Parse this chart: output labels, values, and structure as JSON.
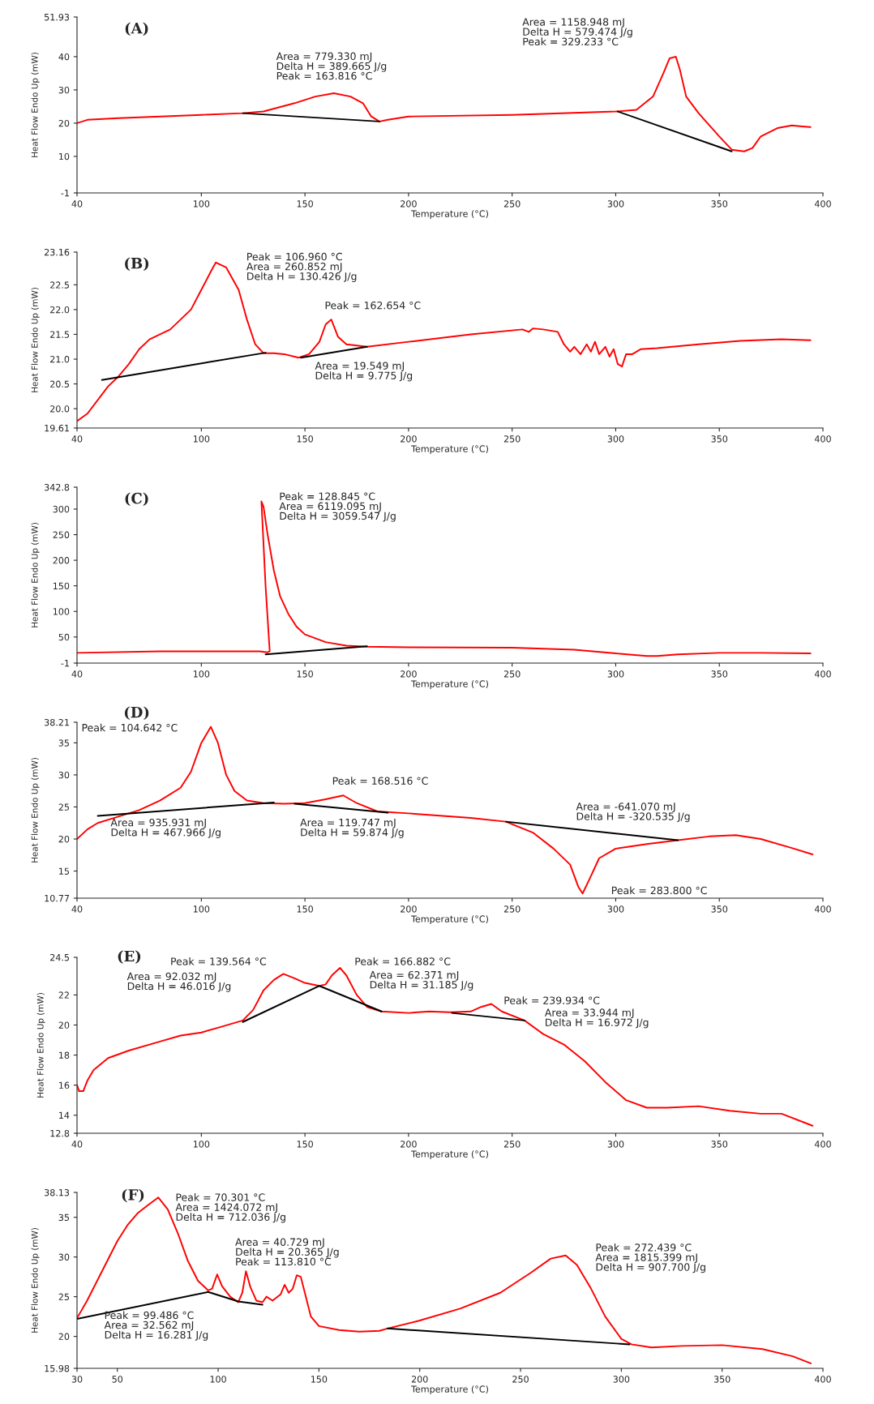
{
  "chart_data": [
    {
      "type": "line",
      "title": "(A)",
      "xlabel": "Temperature (°C)",
      "ylabel": "Heat Flow Endo Up (mW)",
      "xlim": [
        40,
        400
      ],
      "xticks": [
        40,
        100,
        150,
        200,
        250,
        300,
        350,
        400
      ],
      "ylim": [
        -1,
        51.93
      ],
      "yticks": [
        -1,
        10,
        20,
        30,
        40,
        51.93
      ],
      "series": [
        {
          "color": "#ff0000",
          "x": [
            40,
            45,
            60,
            100,
            120,
            130,
            145,
            155,
            164,
            172,
            178,
            182,
            186,
            190,
            200,
            250,
            300,
            310,
            318,
            323,
            326,
            329,
            331,
            334,
            340,
            350,
            356,
            362,
            366,
            370,
            378,
            385,
            390,
            394
          ],
          "values": [
            20,
            21,
            21.5,
            22.5,
            23,
            23.5,
            26,
            28,
            29,
            28,
            26,
            22,
            20.5,
            21,
            22,
            22.5,
            23.5,
            24,
            28,
            35,
            39.5,
            40,
            36,
            28,
            23,
            16,
            12,
            11.5,
            12.5,
            16,
            18.5,
            19.3,
            19,
            18.8
          ]
        },
        {
          "color": "#000000",
          "x": [
            120,
            186,
            250,
            301,
            356
          ],
          "values": [
            23,
            20.5,
            null,
            23.5,
            11.5
          ]
        }
      ],
      "annotations": [
        "Area = 779.330 mJ\nDelta H = 389.665 J/g\nPeak = 163.816 °C",
        "Area = 1158.948 mJ\nDelta H = 579.474 J/g\nPeak = 329.233 °C"
      ]
    },
    {
      "type": "line",
      "title": "(B)",
      "xlabel": "Temperature (°C)",
      "ylabel": "Heat Flow Endo Up (mW)",
      "xlim": [
        40,
        400
      ],
      "xticks": [
        40,
        100,
        150,
        200,
        250,
        300,
        350,
        400
      ],
      "ylim": [
        19.61,
        23.16
      ],
      "yticks": [
        19.61,
        {
          "value": 20,
          "label": "20.0"
        },
        20.5,
        {
          "value": 21,
          "label": "21.0"
        },
        21.5,
        {
          "value": 22,
          "label": "22.0"
        },
        22.5,
        23.16
      ],
      "series": [
        {
          "color": "#ff0000",
          "x": [
            40,
            45,
            55,
            60,
            65,
            70,
            75,
            85,
            95,
            100,
            105,
            107,
            112,
            118,
            122,
            126,
            130,
            135,
            140,
            147,
            152,
            157,
            160,
            162.7,
            166,
            170,
            180,
            200,
            230,
            255,
            258,
            260,
            265,
            272,
            275,
            278,
            280,
            283,
            286,
            288,
            290,
            292,
            295,
            297,
            299,
            301,
            303,
            305,
            308,
            312,
            320,
            340,
            360,
            380,
            394
          ],
          "values": [
            19.75,
            19.9,
            20.45,
            20.65,
            20.9,
            21.2,
            21.4,
            21.6,
            22.0,
            22.4,
            22.8,
            22.95,
            22.85,
            22.4,
            21.8,
            21.3,
            21.12,
            21.12,
            21.1,
            21.03,
            21.1,
            21.35,
            21.7,
            21.8,
            21.45,
            21.3,
            21.25,
            21.35,
            21.5,
            21.6,
            21.55,
            21.62,
            21.6,
            21.55,
            21.3,
            21.15,
            21.25,
            21.1,
            21.3,
            21.15,
            21.35,
            21.1,
            21.25,
            21.05,
            21.2,
            20.9,
            20.85,
            21.1,
            21.1,
            21.2,
            21.22,
            21.3,
            21.37,
            21.4,
            21.38
          ]
        },
        {
          "color": "#000000",
          "x": [
            52,
            131,
            140,
            148,
            180
          ],
          "values": [
            20.58,
            21.13,
            null,
            21.03,
            21.25
          ]
        }
      ],
      "annotations": [
        "Peak = 106.960 °C\nArea = 260.852 mJ\nDelta H = 130.426 J/g",
        "Peak = 162.654 °C",
        "Area = 19.549 mJ\nDelta H = 9.775 J/g"
      ]
    },
    {
      "type": "line",
      "title": "(C)",
      "xlabel": "Temperature (°C)",
      "ylabel": "Heat Flow Endo Up (mW)",
      "xlim": [
        40,
        400
      ],
      "xticks": [
        40,
        100,
        150,
        200,
        250,
        300,
        350,
        400
      ],
      "ylim": [
        -1,
        342.8
      ],
      "yticks": [
        -1,
        50,
        100,
        150,
        200,
        250,
        300,
        342.8
      ],
      "series": [
        {
          "color": "#ff0000",
          "x": [
            40,
            80,
            128,
            132,
            133,
            131,
            129,
            130,
            132,
            135,
            138,
            142,
            146,
            150,
            160,
            170,
            180,
            200,
            250,
            280,
            300,
            315,
            320,
            330,
            350,
            370,
            394
          ],
          "values": [
            19,
            22,
            22,
            20,
            22,
            150,
            315,
            305,
            250,
            180,
            130,
            95,
            70,
            55,
            40,
            33,
            31,
            30,
            29,
            25,
            18,
            13,
            13,
            16,
            19,
            19,
            18
          ]
        },
        {
          "color": "#000000",
          "x": [
            131,
            180
          ],
          "values": [
            16,
            32
          ]
        }
      ],
      "annotations": [
        "Peak = 128.845 °C\nArea = 6119.095 mJ\nDelta H = 3059.547 J/g"
      ]
    },
    {
      "type": "line",
      "title": "(D)",
      "xlabel": "Temperature (°C)",
      "ylabel": "Heat Flow Endo Up (mW)",
      "xlim": [
        40,
        400
      ],
      "xticks": [
        40,
        100,
        150,
        200,
        250,
        300,
        350,
        400
      ],
      "ylim": [
        10.77,
        38.21
      ],
      "yticks": [
        10.77,
        15,
        20,
        25,
        30,
        35,
        38.21
      ],
      "series": [
        {
          "color": "#ff0000",
          "x": [
            40,
            45,
            50,
            60,
            70,
            80,
            90,
            95,
            100,
            104.6,
            108,
            112,
            116,
            122,
            130,
            140,
            150,
            160,
            168.5,
            175,
            185,
            200,
            230,
            247,
            260,
            270,
            278,
            282,
            284,
            287,
            292,
            300,
            315,
            330,
            345,
            358,
            370,
            385,
            395
          ],
          "values": [
            20,
            21.5,
            22.5,
            23.5,
            24.5,
            26,
            28,
            30.5,
            35,
            37.5,
            35,
            30,
            27.5,
            26,
            25.6,
            25.5,
            25.6,
            26.2,
            26.8,
            25.6,
            24.3,
            24,
            23.3,
            22.7,
            21,
            18.5,
            16,
            12.5,
            11.5,
            13.5,
            17,
            18.5,
            19.2,
            19.8,
            20.4,
            20.6,
            20,
            18.6,
            17.6
          ]
        },
        {
          "color": "#000000",
          "x": [
            50,
            135,
            140,
            145,
            190,
            220,
            247,
            330
          ],
          "values": [
            23.6,
            25.7,
            null,
            25.5,
            24.1,
            null,
            22.7,
            19.8
          ]
        }
      ],
      "annotations": [
        "Peak = 104.642 °C",
        "Peak = 168.516 °C",
        "Area = 935.931 mJ\nDelta H = 467.966 J/g",
        "Area = 119.747 mJ\nDelta H = 59.874 J/g",
        "Area = -641.070 mJ\nDelta H = -320.535 J/g",
        "Peak = 283.800 °C"
      ]
    },
    {
      "type": "line",
      "title": "(E)",
      "xlabel": "Temperature (°C)",
      "ylabel": "Heat Flow Endo Up (mW)",
      "xlim": [
        40,
        400
      ],
      "xticks": [
        40,
        100,
        150,
        200,
        250,
        300,
        350,
        400
      ],
      "ylim": [
        12.8,
        24.5
      ],
      "yticks": [
        12.8,
        14,
        16,
        18,
        20,
        22,
        24.5
      ],
      "series": [
        {
          "color": "#ff0000",
          "x": [
            40,
            41,
            43,
            45,
            48,
            55,
            65,
            80,
            90,
            100,
            110,
            120,
            125,
            130,
            135,
            139.6,
            145,
            150,
            157,
            160,
            163,
            166.9,
            170,
            175,
            180,
            187,
            200,
            210,
            220,
            230,
            235,
            240,
            245,
            256,
            265,
            275,
            285,
            295,
            305,
            315,
            325,
            340,
            355,
            370,
            380,
            395
          ],
          "values": [
            16,
            15.6,
            15.6,
            16.3,
            17,
            17.8,
            18.3,
            18.9,
            19.3,
            19.5,
            19.9,
            20.3,
            21,
            22.3,
            23,
            23.4,
            23.1,
            22.8,
            22.6,
            22.7,
            23.3,
            23.8,
            23.3,
            22,
            21.2,
            20.9,
            20.8,
            20.9,
            20.85,
            20.9,
            21.2,
            21.4,
            20.9,
            20.3,
            19.4,
            18.7,
            17.6,
            16.2,
            15,
            14.5,
            14.5,
            14.6,
            14.3,
            14.1,
            14.1,
            13.3
          ]
        },
        {
          "color": "#000000",
          "x": [
            120,
            157,
            187,
            200,
            221,
            256
          ],
          "values": [
            20.2,
            22.6,
            20.9,
            null,
            20.8,
            20.3
          ]
        }
      ],
      "annotations": [
        "Peak = 139.564 °C",
        "Area = 92.032 mJ\nDelta H = 46.016 J/g",
        "Peak = 166.882 °C",
        "Area = 62.371 mJ\nDelta H = 31.185 J/g",
        "Peak = 239.934 °C",
        "Area = 33.944 mJ\nDelta H = 16.972 J/g"
      ]
    },
    {
      "type": "line",
      "title": "(F)",
      "xlabel": "Temperature (°C)",
      "ylabel": "Heat Flow Endo Up (mW)",
      "xlim": [
        30,
        400
      ],
      "xticks": [
        30,
        50,
        100,
        150,
        200,
        250,
        300,
        350,
        400
      ],
      "ylim": [
        15.98,
        38.13
      ],
      "yticks": [
        15.98,
        20,
        25,
        30,
        35,
        38.13
      ],
      "series": [
        {
          "color": "#ff0000",
          "x": [
            30,
            35,
            40,
            45,
            50,
            55,
            60,
            65,
            70.3,
            75,
            80,
            85,
            90,
            95,
            97,
            99.5,
            102,
            106,
            110,
            112,
            113.8,
            116,
            119,
            122,
            124,
            127,
            131,
            133,
            135,
            137,
            139,
            141,
            143,
            146,
            150,
            160,
            170,
            180,
            184,
            200,
            220,
            240,
            255,
            265,
            272.4,
            278,
            285,
            292,
            300,
            305,
            315,
            330,
            350,
            370,
            385,
            394
          ],
          "values": [
            22.3,
            24.5,
            27,
            29.5,
            32,
            34,
            35.5,
            36.5,
            37.5,
            36,
            33,
            29.5,
            27,
            25.8,
            26,
            27.8,
            26.3,
            25,
            24.3,
            25.5,
            28.2,
            26.2,
            24.5,
            24.3,
            25,
            24.5,
            25.3,
            26.5,
            25.5,
            26,
            27.7,
            27.5,
            25.5,
            22.5,
            21.3,
            20.8,
            20.6,
            20.7,
            21,
            22,
            23.5,
            25.5,
            28,
            29.8,
            30.2,
            29,
            26,
            22.5,
            19.7,
            19,
            18.6,
            18.8,
            18.9,
            18.4,
            17.5,
            16.6
          ]
        },
        {
          "color": "#000000",
          "x": [
            30,
            95,
            110,
            122,
            150,
            184,
            304
          ],
          "values": [
            22.2,
            25.6,
            24.4,
            24.0,
            null,
            21,
            19
          ]
        }
      ],
      "annotations": [
        "Peak = 70.301 °C\nArea = 1424.072 mJ\nDelta H = 712.036 J/g",
        "Area = 40.729 mJ\nDelta H = 20.365 J/g\nPeak = 113.810 °C",
        "Peak = 272.439 °C\nArea = 1815.399 mJ\nDelta H = 907.700 J/g",
        "Peak = 99.486 °C\nArea = 32.562 mJ\nDelta H = 16.281 J/g"
      ]
    }
  ]
}
